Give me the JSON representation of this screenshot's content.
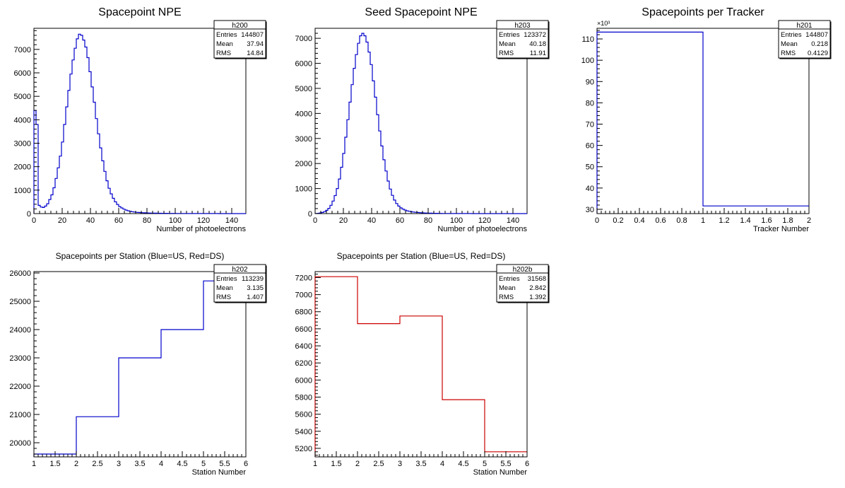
{
  "chart_data": [
    {
      "type": "histogram",
      "title": "Spacepoint NPE",
      "xlabel": "Number of photoelectrons",
      "ylabel": "",
      "xlim": [
        0,
        150
      ],
      "ylim": [
        0,
        7900
      ],
      "xticks": [
        0,
        20,
        40,
        60,
        80,
        100,
        120,
        140
      ],
      "yticks": [
        0,
        1000,
        2000,
        3000,
        4000,
        5000,
        6000,
        7000
      ],
      "line_color": "#0000cc",
      "stats": {
        "name": "h200",
        "rows": [
          [
            "Entries",
            "144807"
          ],
          [
            "Mean",
            "37.94"
          ],
          [
            "RMS",
            "14.84"
          ]
        ]
      },
      "bin_width": 1.5,
      "values": [
        4400,
        3800,
        350,
        280,
        260,
        320,
        420,
        600,
        800,
        1100,
        1500,
        1950,
        2450,
        3050,
        3800,
        4550,
        5250,
        5950,
        6550,
        7050,
        7450,
        7650,
        7600,
        7400,
        7100,
        6650,
        6050,
        5400,
        4750,
        4050,
        3400,
        2800,
        2250,
        1800,
        1400,
        1080,
        840,
        650,
        500,
        390,
        300,
        240,
        190,
        150,
        120,
        100,
        80,
        65,
        55,
        48,
        42,
        36,
        32,
        28,
        25,
        22,
        20,
        18,
        16,
        14,
        13,
        12,
        11,
        10,
        9,
        8,
        8,
        7,
        6,
        6,
        5,
        5,
        4,
        4,
        4,
        3,
        3,
        3,
        3,
        3,
        2,
        2,
        2,
        2,
        2,
        2,
        2,
        1,
        1,
        1,
        1,
        1,
        1,
        1,
        1,
        1,
        1,
        1,
        1,
        1
      ]
    },
    {
      "type": "histogram",
      "title": "Seed Spacepoint NPE",
      "xlabel": "Number of photoelectrons",
      "ylabel": "",
      "xlim": [
        0,
        150
      ],
      "ylim": [
        0,
        7400
      ],
      "xticks": [
        0,
        20,
        40,
        60,
        80,
        100,
        120,
        140
      ],
      "yticks": [
        0,
        1000,
        2000,
        3000,
        4000,
        5000,
        6000,
        7000
      ],
      "line_color": "#0000cc",
      "stats": {
        "name": "h203",
        "rows": [
          [
            "Entries",
            "123372"
          ],
          [
            "Mean",
            "40.18"
          ],
          [
            "RMS",
            "11.91"
          ]
        ]
      },
      "bin_width": 1.5,
      "values": [
        5,
        12,
        25,
        45,
        80,
        130,
        210,
        330,
        500,
        720,
        1000,
        1380,
        1850,
        2400,
        3050,
        3750,
        4450,
        5150,
        5800,
        6350,
        6800,
        7100,
        7200,
        7100,
        6850,
        6450,
        5950,
        5300,
        4650,
        3950,
        3300,
        2700,
        2150,
        1700,
        1300,
        980,
        730,
        540,
        400,
        300,
        230,
        180,
        140,
        110,
        90,
        75,
        62,
        52,
        44,
        37,
        31,
        26,
        22,
        19,
        16,
        14,
        12,
        10,
        9,
        8,
        7,
        6,
        5,
        5,
        4,
        4,
        3,
        3,
        3,
        2,
        2,
        2,
        2,
        2,
        1,
        1,
        1,
        1,
        1,
        1,
        1,
        1,
        1,
        1,
        1,
        1,
        1,
        1,
        1,
        1,
        1,
        1,
        1,
        1,
        1,
        1,
        1,
        1,
        1,
        1
      ]
    },
    {
      "type": "histogram",
      "title": "Spacepoints per Tracker",
      "xlabel": "Tracker Number",
      "ylabel": "",
      "y_exponent_label": "×10³",
      "xlim": [
        0,
        2
      ],
      "ylim": [
        28,
        115
      ],
      "xticks": [
        0,
        0.2,
        0.4,
        0.6,
        0.8,
        1,
        1.2,
        1.4,
        1.6,
        1.8,
        2
      ],
      "yticks": [
        30,
        40,
        50,
        60,
        70,
        80,
        90,
        100,
        110
      ],
      "line_color": "#0000cc",
      "stats": {
        "name": "h201",
        "rows": [
          [
            "Entries",
            "144807"
          ],
          [
            "Mean",
            "0.218"
          ],
          [
            "RMS",
            "0.4129"
          ]
        ]
      },
      "bin_edges": [
        0,
        1,
        2
      ],
      "values": [
        113.2,
        31.6
      ]
    },
    {
      "type": "histogram",
      "title": "Spacepoints per Station (Blue=US, Red=DS)",
      "xlabel": "Station Number",
      "ylabel": "",
      "xlim": [
        1,
        6
      ],
      "ylim": [
        19500,
        26050
      ],
      "xticks": [
        1,
        1.5,
        2,
        2.5,
        3,
        3.5,
        4,
        4.5,
        5,
        5.5,
        6
      ],
      "yticks": [
        20000,
        21000,
        22000,
        23000,
        24000,
        25000,
        26000
      ],
      "line_color": "#0000cc",
      "stats": {
        "name": "h202",
        "rows": [
          [
            "Entries",
            "113239"
          ],
          [
            "Mean",
            "3.135"
          ],
          [
            "RMS",
            "1.407"
          ]
        ]
      },
      "bin_edges": [
        1,
        2,
        3,
        4,
        5,
        6
      ],
      "values": [
        19600,
        20920,
        23000,
        24000,
        25720
      ]
    },
    {
      "type": "histogram",
      "title": "Spacepoints per Station (Blue=US, Red=DS)",
      "xlabel": "Station Number",
      "ylabel": "",
      "xlim": [
        1,
        6
      ],
      "ylim": [
        5100,
        7270
      ],
      "xticks": [
        1,
        1.5,
        2,
        2.5,
        3,
        3.5,
        4,
        4.5,
        5,
        5.5,
        6
      ],
      "yticks": [
        5200,
        5400,
        5600,
        5800,
        6000,
        6200,
        6400,
        6600,
        6800,
        7000,
        7200
      ],
      "line_color": "#cc0000",
      "stats": {
        "name": "h202b",
        "rows": [
          [
            "Entries",
            "31568"
          ],
          [
            "Mean",
            "2.842"
          ],
          [
            "RMS",
            "1.392"
          ]
        ]
      },
      "bin_edges": [
        1,
        2,
        3,
        4,
        5,
        6
      ],
      "values": [
        7210,
        6660,
        6750,
        5770,
        5160
      ]
    }
  ]
}
